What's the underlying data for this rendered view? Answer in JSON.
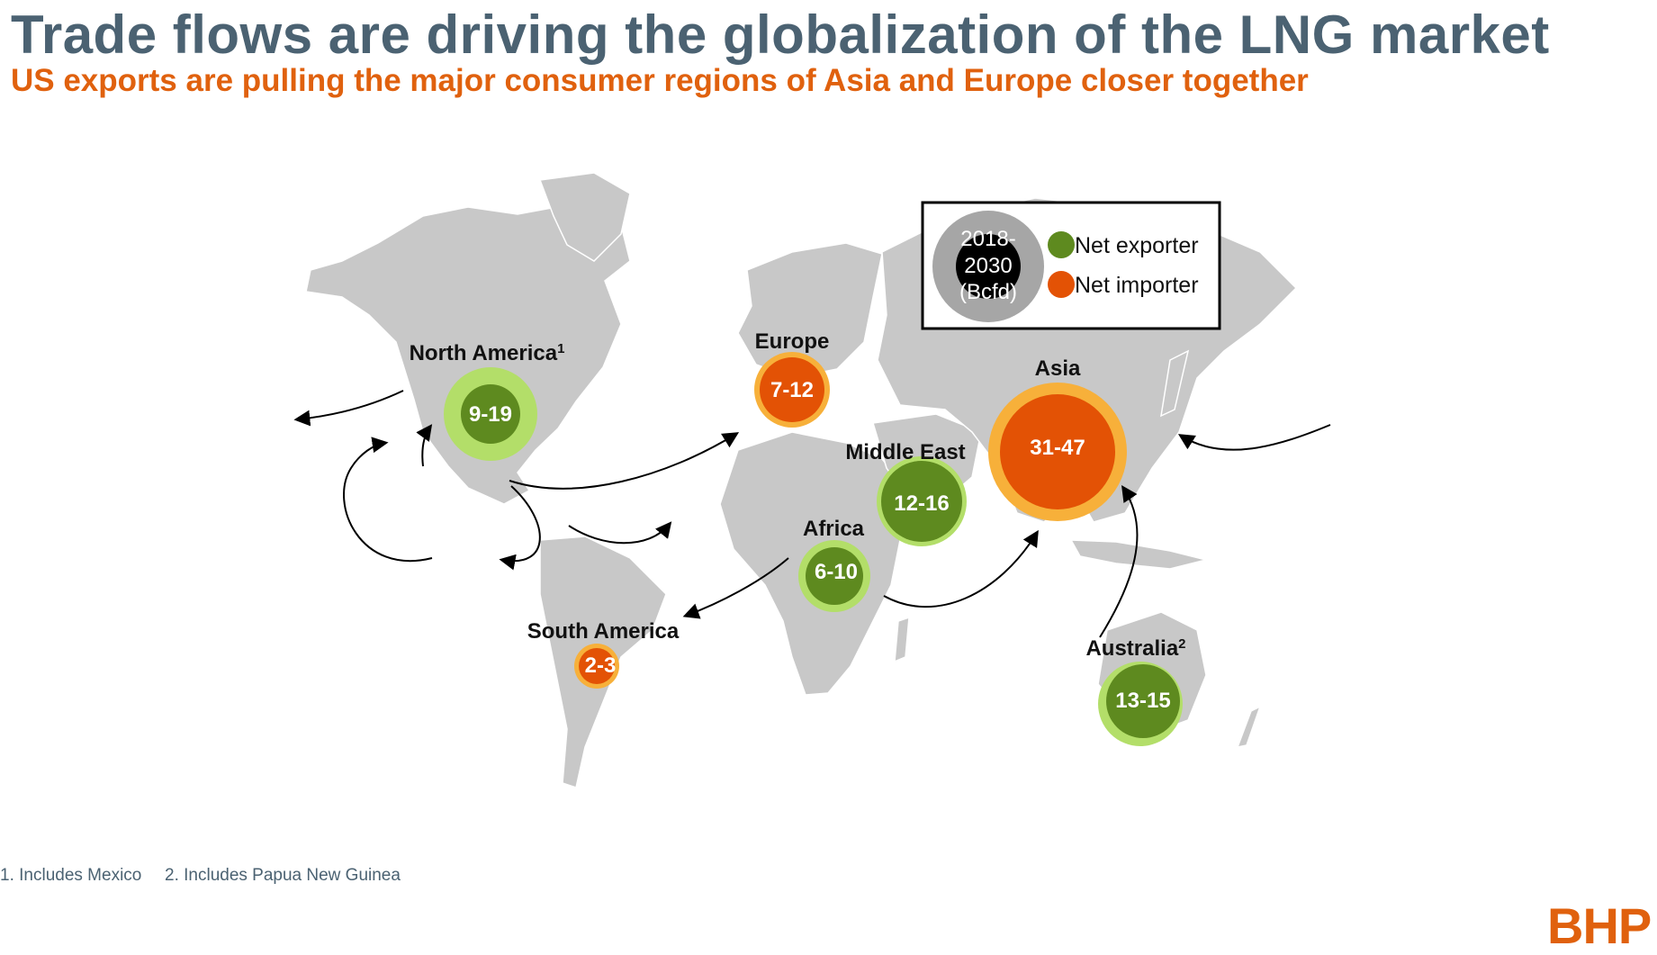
{
  "title": "Trade flows are driving the globalization of the LNG market",
  "subtitle": "US exports are pulling the major consumer regions of Asia and Europe closer together",
  "colors": {
    "exporter_outer": "#b3de69",
    "exporter_inner": "#5e8a1f",
    "importer_outer": "#f7b03a",
    "importer_inner": "#e35205",
    "land": "#c8c8c8",
    "title": "#4b6272",
    "accent": "#e0610e"
  },
  "regions": {
    "north_america": {
      "label": "North America",
      "sup": "1",
      "value": "9-19",
      "type": "exporter"
    },
    "europe": {
      "label": "Europe",
      "value": "7-12",
      "type": "importer"
    },
    "asia": {
      "label": "Asia",
      "value": "31-47",
      "type": "importer"
    },
    "middle_east": {
      "label": "Middle East",
      "value": "12-16",
      "type": "exporter"
    },
    "africa": {
      "label": "Africa",
      "value": "6-10",
      "type": "exporter"
    },
    "south_america": {
      "label": "South America",
      "value": "2-3",
      "type": "importer"
    },
    "australia": {
      "label": "Australia",
      "sup": "2",
      "value": "13-15",
      "type": "exporter"
    }
  },
  "legend": {
    "period_line1": "2018-",
    "period_line2": "2030",
    "period_line3": "(Bcfd)",
    "exporter": "Net exporter",
    "importer": "Net importer"
  },
  "footnotes": {
    "note1": "1. Includes Mexico",
    "note2": "2. Includes Papua New Guinea"
  },
  "logo": "BHP"
}
